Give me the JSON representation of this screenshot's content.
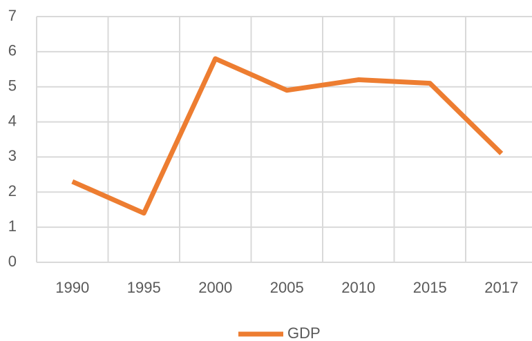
{
  "chart_data": {
    "type": "line",
    "categories": [
      "1990",
      "1995",
      "2000",
      "2005",
      "2010",
      "2015",
      "2017"
    ],
    "series": [
      {
        "name": "GDP",
        "color": "#ed7d31",
        "values": [
          2.3,
          1.4,
          5.8,
          4.9,
          5.2,
          5.1,
          3.1
        ]
      }
    ],
    "ylim": [
      0,
      7
    ],
    "yticks": [
      0,
      1,
      2,
      3,
      4,
      5,
      6,
      7
    ],
    "grid": true,
    "legend": "bottom"
  }
}
